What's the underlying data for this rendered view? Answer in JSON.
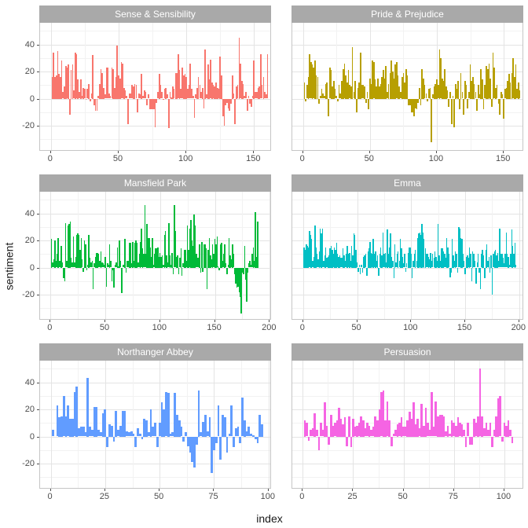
{
  "chart_data": {
    "type": "bar",
    "title": "",
    "xlabel": "index",
    "ylabel": "sentiment",
    "ylim": [
      -38,
      56
    ],
    "y_major_ticks": [
      -20,
      0,
      20,
      40
    ],
    "y_minor_ticks": [
      -30,
      -10,
      10,
      30,
      50
    ],
    "grid": true,
    "legend": "none",
    "facet_layout": {
      "rows": 3,
      "cols": 2
    },
    "theme": {
      "strip_fill": "#A9A9A9",
      "strip_text_color": "#FFFFFF",
      "panel_border": "#C6C6C6",
      "grid_major": "#E4E4E4",
      "grid_minor": "#F2F2F2",
      "axis_text_color": "#4D4D4D",
      "axis_title_color": "#1A1A1A",
      "background": "#FFFFFF"
    },
    "facets": [
      {
        "title": "Sense & Sensibility",
        "color": "#F8766D",
        "x_ticks": [
          0,
          50,
          100,
          150
        ],
        "xlim": [
          -8,
          162
        ],
        "values": [
          16,
          34,
          16,
          17,
          35,
          18,
          16,
          28,
          5,
          9,
          24,
          23,
          25,
          -12,
          21,
          25,
          6,
          34,
          33,
          14,
          5,
          14,
          2,
          8,
          7,
          -1,
          7,
          11,
          -2,
          4,
          32,
          -5,
          -9,
          -9,
          2,
          11,
          22,
          19,
          8,
          3,
          23,
          23,
          4,
          2,
          23,
          22,
          8,
          16,
          39,
          17,
          15,
          27,
          26,
          8,
          6,
          2,
          -19,
          4,
          4,
          10,
          9,
          11,
          10,
          -10,
          4,
          3,
          18,
          2,
          6,
          5,
          -5,
          3,
          -8,
          -8,
          -8,
          -8,
          -21,
          -3,
          5,
          18,
          10,
          5,
          -1,
          7,
          8,
          3,
          -22,
          5,
          1,
          9,
          7,
          19,
          19,
          33,
          21,
          7,
          23,
          17,
          18,
          16,
          7,
          10,
          26,
          7,
          2,
          -14,
          3,
          8,
          16,
          10,
          5,
          8,
          -7,
          36,
          3,
          25,
          14,
          29,
          12,
          10,
          9,
          12,
          8,
          7,
          31,
          17,
          -13,
          -20,
          -5,
          -3,
          -7,
          -9,
          -4,
          17,
          4,
          -19,
          9,
          10,
          45,
          26,
          13,
          11,
          2,
          5,
          -9,
          2,
          -4,
          -6,
          2,
          28,
          5,
          5,
          8,
          9,
          33,
          10,
          16,
          5,
          3,
          33
        ]
      },
      {
        "title": "Pride & Prejudice",
        "color": "#B79F00",
        "x_ticks": [
          0,
          50,
          100,
          150
        ],
        "xlim": [
          -8,
          164
        ],
        "values": [
          12,
          -2,
          10,
          16,
          33,
          27,
          25,
          23,
          28,
          17,
          16,
          -4,
          2,
          7,
          4,
          2,
          11,
          12,
          -13,
          23,
          21,
          9,
          13,
          7,
          2,
          -2,
          10,
          4,
          13,
          22,
          26,
          17,
          12,
          21,
          10,
          9,
          38,
          5,
          13,
          -10,
          8,
          12,
          34,
          10,
          10,
          9,
          -3,
          5,
          -8,
          15,
          11,
          28,
          27,
          14,
          9,
          15,
          9,
          11,
          16,
          21,
          15,
          24,
          5,
          11,
          19,
          28,
          20,
          15,
          25,
          27,
          17,
          9,
          5,
          16,
          19,
          12,
          22,
          17,
          -5,
          -5,
          -10,
          -10,
          -13,
          -7,
          -8,
          -3,
          8,
          -5,
          22,
          15,
          10,
          4,
          -2,
          7,
          8,
          -32,
          3,
          9,
          11,
          14,
          10,
          36,
          30,
          15,
          13,
          22,
          9,
          6,
          -6,
          5,
          -19,
          2,
          -21,
          11,
          7,
          13,
          -8,
          19,
          5,
          -12,
          13,
          10,
          -7,
          5,
          25,
          13,
          16,
          11,
          5,
          -9,
          10,
          3,
          22,
          14,
          -8,
          10,
          24,
          22,
          26,
          15,
          -6,
          34,
          23,
          8,
          10,
          -4,
          -12,
          5,
          3,
          -15,
          7,
          8,
          13,
          18,
          12,
          19,
          30,
          16,
          25,
          7,
          12,
          6
        ]
      },
      {
        "title": "Mansfield Park",
        "color": "#00BA38",
        "x_ticks": [
          0,
          50,
          100,
          150,
          200
        ],
        "xlim": [
          -9.5,
          200.5
        ],
        "values": [
          21,
          4,
          6,
          20,
          5,
          10,
          22,
          5,
          5,
          16,
          4,
          -8,
          -10,
          33,
          5,
          31,
          32,
          34,
          7,
          4,
          23,
          4,
          8,
          24,
          25,
          24,
          13,
          22,
          6,
          -3,
          20,
          17,
          -2,
          2,
          24,
          7,
          4,
          5,
          -16,
          3,
          8,
          11,
          11,
          10,
          5,
          12,
          4,
          3,
          2,
          8,
          -14,
          3,
          2,
          17,
          5,
          -10,
          -2,
          -15,
          2,
          4,
          15,
          1,
          20,
          5,
          -19,
          2,
          2,
          21,
          -4,
          5,
          5,
          18,
          18,
          3,
          19,
          5,
          18,
          20,
          18,
          4,
          10,
          19,
          29,
          14,
          10,
          46,
          10,
          32,
          22,
          22,
          15,
          8,
          22,
          2,
          10,
          14,
          14,
          15,
          8,
          11,
          8,
          9,
          2,
          24,
          27,
          9,
          4,
          33,
          9,
          2,
          11,
          -5,
          46,
          27,
          8,
          9,
          -5,
          7,
          14,
          -6,
          3,
          13,
          13,
          5,
          31,
          13,
          29,
          35,
          20,
          16,
          39,
          31,
          10,
          7,
          7,
          17,
          -4,
          19,
          -3,
          17,
          17,
          14,
          -16,
          13,
          22,
          9,
          6,
          17,
          10,
          21,
          17,
          23,
          1,
          -2,
          17,
          18,
          5,
          10,
          17,
          3,
          -5,
          2,
          22,
          9,
          6,
          17,
          10,
          -5,
          -12,
          -15,
          -14,
          -18,
          -22,
          -34,
          -4,
          -5,
          16,
          -9,
          -25,
          -4,
          3,
          5,
          2,
          10,
          15,
          5,
          41,
          8,
          34
        ]
      },
      {
        "title": "Emma",
        "color": "#00BFC4",
        "x_ticks": [
          0,
          50,
          100,
          150,
          200
        ],
        "xlim": [
          -10,
          203
        ],
        "values": [
          15,
          13,
          17,
          16,
          15,
          27,
          24,
          21,
          5,
          8,
          31,
          15,
          10,
          6,
          12,
          29,
          25,
          29,
          5,
          9,
          15,
          7,
          8,
          9,
          14,
          16,
          13,
          10,
          15,
          13,
          18,
          10,
          8,
          9,
          7,
          7,
          14,
          9,
          5,
          10,
          16,
          10,
          11,
          5,
          16,
          9,
          25,
          24,
          13,
          4,
          -3,
          2,
          -5,
          2,
          -4,
          8,
          9,
          10,
          -6,
          12,
          14,
          19,
          11,
          10,
          21,
          10,
          12,
          5,
          9,
          -6,
          10,
          15,
          9,
          26,
          10,
          11,
          4,
          28,
          10,
          15,
          25,
          8,
          5,
          -8,
          17,
          4,
          10,
          12,
          5,
          21,
          14,
          8,
          3,
          10,
          -3,
          3,
          11,
          15,
          15,
          10,
          -8,
          5,
          10,
          13,
          5,
          22,
          25,
          26,
          24,
          32,
          26,
          21,
          14,
          10,
          10,
          8,
          6,
          11,
          5,
          10,
          7,
          12,
          8,
          5,
          32,
          9,
          5,
          14,
          14,
          12,
          10,
          7,
          22,
          15,
          10,
          -7,
          -4,
          21,
          9,
          5,
          12,
          10,
          -4,
          30,
          29,
          22,
          21,
          10,
          5,
          -5,
          8,
          9,
          7,
          15,
          10,
          -10,
          12,
          10,
          5,
          -12,
          4,
          10,
          -4,
          -16,
          10,
          13,
          9,
          -8,
          13,
          17,
          5,
          8,
          -4,
          9,
          -20,
          10,
          12,
          13,
          9,
          11,
          5,
          29,
          10,
          10,
          7,
          3,
          10,
          26,
          10,
          8,
          2,
          10,
          28,
          16,
          10,
          18,
          2
        ]
      },
      {
        "title": "Northanger Abbey",
        "color": "#619CFF",
        "x_ticks": [
          0,
          25,
          50,
          75,
          100
        ],
        "xlim": [
          -4.9,
          100.8
        ],
        "values": [
          5,
          0,
          23,
          14,
          15,
          30,
          15,
          23,
          13,
          13,
          33,
          37,
          6,
          7,
          7,
          3,
          43,
          7,
          5,
          22,
          22,
          5,
          3,
          17,
          20,
          -8,
          9,
          8,
          -4,
          19,
          5,
          8,
          19,
          19,
          4,
          3,
          4,
          2,
          -8,
          6,
          2,
          -2,
          13,
          12,
          3,
          20,
          7,
          10,
          -8,
          10,
          25,
          20,
          33,
          32,
          2,
          3,
          32,
          16,
          12,
          7,
          -4,
          3,
          -7,
          -12,
          -19,
          -23,
          -6,
          34,
          3,
          11,
          16,
          4,
          14,
          -27,
          -10,
          -5,
          23,
          -17,
          16,
          14,
          -12,
          2,
          23,
          -8,
          6,
          7,
          -5,
          29,
          12,
          4,
          7,
          2,
          1,
          -2,
          -5,
          16,
          9
        ]
      },
      {
        "title": "Persuasion",
        "color": "#F564E3",
        "x_ticks": [
          0,
          25,
          50,
          75,
          100
        ],
        "xlim": [
          -5.2,
          109
        ],
        "values": [
          12,
          10,
          -3,
          5,
          6,
          17,
          5,
          -10,
          10,
          5,
          25,
          8,
          -6,
          16,
          8,
          10,
          12,
          21,
          13,
          9,
          14,
          -7,
          15,
          -8,
          13,
          7,
          8,
          10,
          15,
          12,
          6,
          10,
          8,
          5,
          7,
          15,
          12,
          20,
          33,
          34,
          12,
          26,
          12,
          -7,
          2,
          5,
          9,
          10,
          14,
          7,
          7,
          12,
          18,
          13,
          25,
          9,
          13,
          6,
          24,
          8,
          21,
          10,
          5,
          33,
          7,
          26,
          15,
          16,
          16,
          15,
          4,
          8,
          2,
          12,
          10,
          8,
          14,
          10,
          9,
          5,
          -8,
          10,
          -6,
          -6,
          13,
          10,
          15,
          50,
          15,
          6,
          10,
          5,
          10,
          -8,
          5,
          15,
          28,
          30,
          -4,
          10,
          8,
          12,
          5,
          -5
        ]
      }
    ]
  }
}
